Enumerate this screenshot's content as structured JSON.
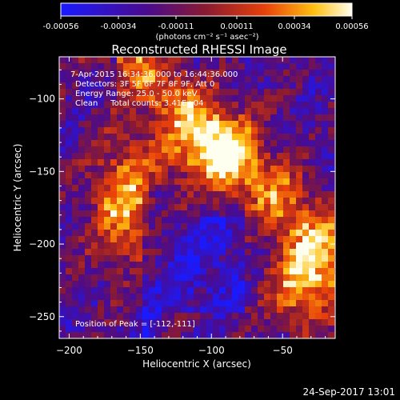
{
  "colorbar": {
    "tick_labels": [
      "-0.00056",
      "-0.00034",
      "-0.00011",
      "0.00011",
      "0.00034",
      "0.00056"
    ],
    "unit_label": "(photons cm⁻² s⁻¹ asec⁻²)"
  },
  "title": "Reconstructed RHESSI Image",
  "info_lines": [
    "7-Apr-2015 16:34:36.000 to 16:44:36.000",
    "Detectors: 3F 5F 6F 7F 8F 9F, Att 0",
    "Energy Range: 25.0 - 50.0 keV",
    "Clean     Total counts: 3.41E+04"
  ],
  "peak_label": "Position of Peak = [-112,-111]",
  "footer_timestamp": "24-Sep-2017 13:01",
  "colors": {
    "background": "#000000",
    "foreground": "#ffffff",
    "colormap": [
      "#1a1aff",
      "#4b0b8c",
      "#8b1a30",
      "#e8400a",
      "#ffc010",
      "#fffff0"
    ]
  },
  "chart_data": {
    "type": "heatmap",
    "title": "Reconstructed RHESSI Image",
    "xlabel": "Heliocentric X (arcsec)",
    "ylabel": "Heliocentric Y (arcsec)",
    "xlim": [
      -207,
      -13
    ],
    "ylim": [
      -265,
      -71
    ],
    "xticks": [
      -200,
      -150,
      -100,
      -50
    ],
    "yticks": [
      -250,
      -200,
      -150,
      -100
    ],
    "colorbar_range": [
      -0.00056,
      0.00056
    ],
    "peak_position": [
      -112,
      -111
    ],
    "grid": false
  }
}
